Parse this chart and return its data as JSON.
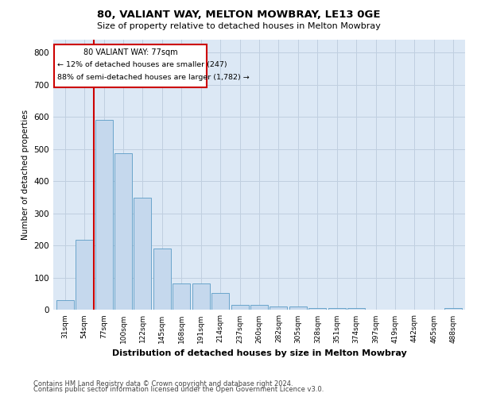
{
  "title": "80, VALIANT WAY, MELTON MOWBRAY, LE13 0GE",
  "subtitle": "Size of property relative to detached houses in Melton Mowbray",
  "xlabel": "Distribution of detached houses by size in Melton Mowbray",
  "ylabel": "Number of detached properties",
  "categories": [
    "31sqm",
    "54sqm",
    "77sqm",
    "100sqm",
    "122sqm",
    "145sqm",
    "168sqm",
    "191sqm",
    "214sqm",
    "237sqm",
    "260sqm",
    "282sqm",
    "305sqm",
    "328sqm",
    "351sqm",
    "374sqm",
    "397sqm",
    "419sqm",
    "442sqm",
    "465sqm",
    "488sqm"
  ],
  "bar_values": [
    30,
    218,
    590,
    488,
    350,
    190,
    82,
    82,
    52,
    15,
    15,
    12,
    10,
    7,
    5,
    5,
    0,
    0,
    0,
    0,
    5
  ],
  "bar_color": "#c5d8ed",
  "bar_edgecolor": "#5a9cc5",
  "red_line_color": "#cc0000",
  "annotation_text_line1": "80 VALIANT WAY: 77sqm",
  "annotation_text_line2": "← 12% of detached houses are smaller (247)",
  "annotation_text_line3": "88% of semi-detached houses are larger (1,782) →",
  "annotation_box_color": "#cc0000",
  "grid_color": "#c0cfe0",
  "bg_color": "#dce8f5",
  "ylim": [
    0,
    840
  ],
  "yticks": [
    0,
    100,
    200,
    300,
    400,
    500,
    600,
    700,
    800
  ],
  "footer_line1": "Contains HM Land Registry data © Crown copyright and database right 2024.",
  "footer_line2": "Contains public sector information licensed under the Open Government Licence v3.0."
}
